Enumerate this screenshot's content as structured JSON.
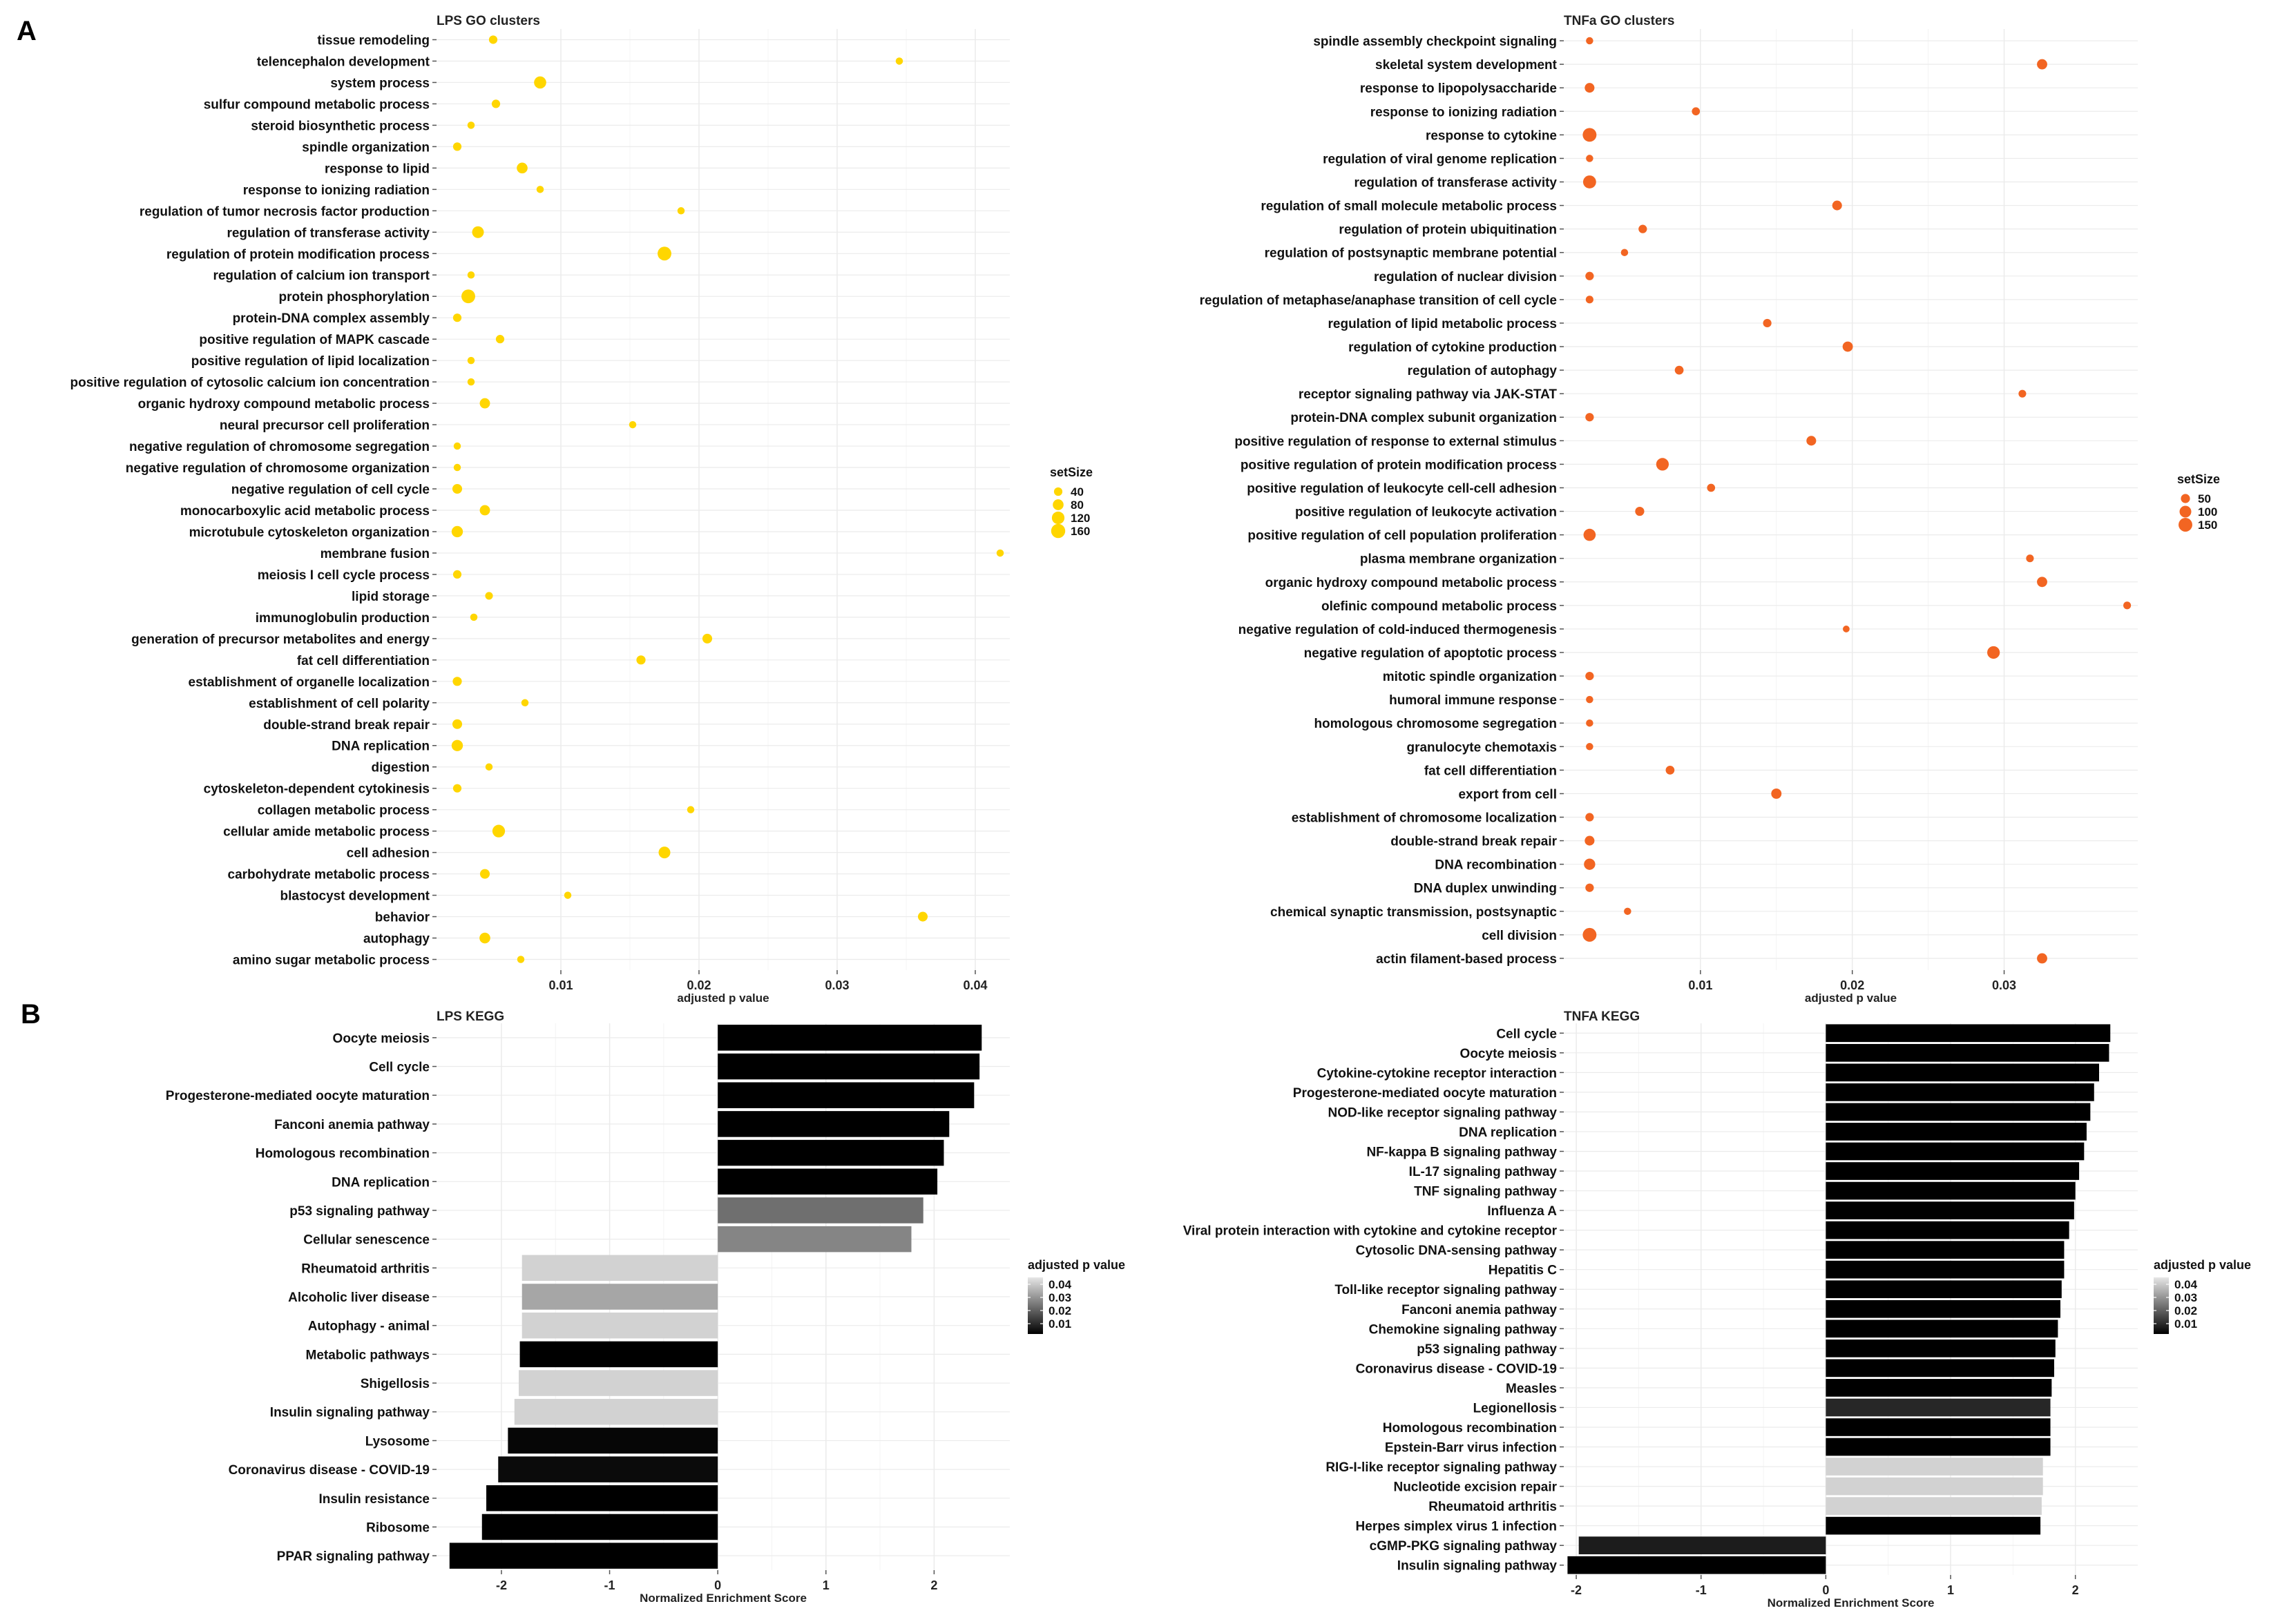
{
  "panel_labels": [
    "A",
    "B"
  ],
  "colors": {
    "lps_dot": "#FFD600",
    "tnfa_dot": "#F26522",
    "grid": "#ebebeb"
  },
  "chart_data": [
    {
      "type": "scatter",
      "title": "LPS GO clusters",
      "xlabel": "adjusted p value",
      "xlim": [
        0.001,
        0.0425
      ],
      "xticks": [
        0.01,
        0.02,
        0.03,
        0.04
      ],
      "x_tick_labels": [
        "0.01",
        "0.02",
        "0.03",
        "0.04"
      ],
      "legend_title": "setSize",
      "legend": [
        {
          "label": "40",
          "size": 40
        },
        {
          "label": "80",
          "size": 80
        },
        {
          "label": "120",
          "size": 120
        },
        {
          "label": "160",
          "size": 160
        }
      ],
      "color": "#FFD600",
      "categories": [
        "tissue remodeling",
        "telencephalon development",
        "system process",
        "sulfur compound metabolic process",
        "steroid biosynthetic process",
        "spindle organization",
        "response to lipid",
        "response to ionizing radiation",
        "regulation of tumor necrosis factor production",
        "regulation of transferase activity",
        "regulation of protein modification process",
        "regulation of calcium ion transport",
        "protein phosphorylation",
        "protein-DNA complex assembly",
        "positive regulation of MAPK cascade",
        "positive regulation of lipid localization",
        "positive regulation of cytosolic calcium ion concentration",
        "organic hydroxy compound metabolic process",
        "neural precursor cell proliferation",
        "negative regulation of chromosome segregation",
        "negative regulation of chromosome organization",
        "negative regulation of cell cycle",
        "monocarboxylic acid metabolic process",
        "microtubule cytoskeleton organization",
        "membrane fusion",
        "meiosis I cell cycle process",
        "lipid storage",
        "immunoglobulin production",
        "generation of precursor metabolites and energy",
        "fat cell differentiation",
        "establishment of organelle localization",
        "establishment of cell polarity",
        "double-strand break repair",
        "DNA replication",
        "digestion",
        "cytoskeleton-dependent cytokinesis",
        "collagen metabolic process",
        "cellular amide metabolic process",
        "cell adhesion",
        "carbohydrate metabolic process",
        "blastocyst development",
        "behavior",
        "autophagy",
        "amino sugar metabolic process"
      ],
      "x": [
        0.0051,
        0.0345,
        0.0085,
        0.0053,
        0.0035,
        0.0025,
        0.0072,
        0.0085,
        0.0187,
        0.004,
        0.0175,
        0.0035,
        0.0033,
        0.0025,
        0.0056,
        0.0035,
        0.0035,
        0.0045,
        0.0152,
        0.0025,
        0.0025,
        0.0025,
        0.0045,
        0.0025,
        0.0418,
        0.0025,
        0.0048,
        0.0037,
        0.0206,
        0.0158,
        0.0025,
        0.0074,
        0.0025,
        0.0025,
        0.0048,
        0.0025,
        0.0194,
        0.0055,
        0.0175,
        0.0045,
        0.0105,
        0.0362,
        0.0045,
        0.0071
      ],
      "setSize": [
        40,
        25,
        110,
        40,
        25,
        40,
        80,
        25,
        25,
        100,
        150,
        25,
        150,
        40,
        40,
        25,
        25,
        70,
        25,
        25,
        25,
        60,
        70,
        90,
        25,
        40,
        30,
        25,
        60,
        50,
        50,
        25,
        60,
        90,
        25,
        40,
        25,
        120,
        100,
        60,
        25,
        60,
        80,
        25
      ]
    },
    {
      "type": "scatter",
      "title": "TNFa GO clusters",
      "xlabel": "adjusted p value",
      "xlim": [
        0.001,
        0.0388
      ],
      "xticks": [
        0.01,
        0.02,
        0.03
      ],
      "x_tick_labels": [
        "0.01",
        "0.02",
        "0.03"
      ],
      "legend_title": "setSize",
      "legend": [
        {
          "label": "50",
          "size": 50
        },
        {
          "label": "100",
          "size": 100
        },
        {
          "label": "150",
          "size": 150
        }
      ],
      "color": "#F26522",
      "categories": [
        "spindle assembly checkpoint signaling",
        "skeletal system development",
        "response to lipopolysaccharide",
        "response to ionizing radiation",
        "response to cytokine",
        "regulation of viral genome replication",
        "regulation of transferase activity",
        "regulation of small molecule metabolic process",
        "regulation of protein ubiquitination",
        "regulation of postsynaptic membrane potential",
        "regulation of nuclear division",
        "regulation of metaphase/anaphase transition of cell cycle",
        "regulation of lipid metabolic process",
        "regulation of cytokine production",
        "regulation of autophagy",
        "receptor signaling pathway via JAK-STAT",
        "protein-DNA complex subunit organization",
        "positive regulation of response to external stimulus",
        "positive regulation of protein modification process",
        "positive regulation of leukocyte cell-cell adhesion",
        "positive regulation of leukocyte activation",
        "positive regulation of cell population proliferation",
        "plasma membrane organization",
        "organic hydroxy compound metabolic process",
        "olefinic compound metabolic process",
        "negative regulation of cold-induced thermogenesis",
        "negative regulation of apoptotic process",
        "mitotic spindle organization",
        "humoral immune response",
        "homologous chromosome segregation",
        "granulocyte chemotaxis",
        "fat cell differentiation",
        "export from cell",
        "establishment of chromosome localization",
        "double-strand break repair",
        "DNA recombination",
        "DNA duplex unwinding",
        "chemical synaptic transmission, postsynaptic",
        "cell division",
        "actin filament-based process"
      ],
      "x": [
        0.0027,
        0.0325,
        0.0027,
        0.0097,
        0.0027,
        0.0027,
        0.0027,
        0.019,
        0.0062,
        0.005,
        0.0027,
        0.0027,
        0.0144,
        0.0197,
        0.0086,
        0.0312,
        0.0027,
        0.0173,
        0.0075,
        0.0107,
        0.006,
        0.0027,
        0.0317,
        0.0325,
        0.0381,
        0.0196,
        0.0293,
        0.0027,
        0.0027,
        0.0027,
        0.0027,
        0.008,
        0.015,
        0.0027,
        0.0027,
        0.0027,
        0.0027,
        0.0052,
        0.0027,
        0.0325
      ],
      "setSize": [
        25,
        70,
        60,
        35,
        150,
        25,
        130,
        60,
        40,
        25,
        40,
        30,
        40,
        70,
        45,
        30,
        40,
        60,
        120,
        35,
        50,
        110,
        30,
        70,
        30,
        20,
        120,
        40,
        25,
        25,
        25,
        45,
        70,
        40,
        60,
        90,
        40,
        25,
        150,
        70
      ]
    },
    {
      "type": "bar",
      "orientation": "horizontal",
      "title": "LPS KEGG",
      "xlabel": "Normalized Enrichment Score",
      "xlim": [
        -2.6,
        2.7
      ],
      "xticks": [
        -2,
        -1,
        0,
        1,
        2
      ],
      "x_tick_labels": [
        "-2",
        "-1",
        "0",
        "1",
        "2"
      ],
      "legend_title": "adjusted p value",
      "legend_labels": [
        "0.04",
        "0.03",
        "0.02",
        "0.01"
      ],
      "color_scale": {
        "low": "#000000",
        "high": "#dddddd",
        "domain": [
          0.005,
          0.045
        ]
      },
      "categories": [
        "Oocyte meiosis",
        "Cell cycle",
        "Progesterone-mediated oocyte maturation",
        "Fanconi anemia pathway",
        "Homologous recombination",
        "DNA replication",
        "p53 signaling pathway",
        "Cellular senescence",
        "Rheumatoid arthritis",
        "Alcoholic liver disease",
        "Autophagy - animal",
        "Metabolic pathways",
        "Shigellosis",
        "Insulin signaling pathway",
        "Lysosome",
        "Coronavirus disease - COVID-19",
        "Insulin resistance",
        "Ribosome",
        "PPAR signaling pathway"
      ],
      "values": [
        2.44,
        2.42,
        2.37,
        2.14,
        2.09,
        2.03,
        1.9,
        1.79,
        -1.81,
        -1.81,
        -1.81,
        -1.83,
        -1.84,
        -1.88,
        -1.94,
        -2.03,
        -2.14,
        -2.18,
        -2.48
      ],
      "p_adjust": [
        0.001,
        0.001,
        0.001,
        0.002,
        0.002,
        0.003,
        0.025,
        0.029,
        0.043,
        0.035,
        0.043,
        0.001,
        0.043,
        0.043,
        0.006,
        0.007,
        0.005,
        0.005,
        0.001
      ]
    },
    {
      "type": "bar",
      "orientation": "horizontal",
      "title": "TNFA KEGG",
      "xlabel": "Normalized Enrichment Score",
      "xlim": [
        -2.1,
        2.5
      ],
      "xticks": [
        -2,
        -1,
        0,
        1,
        2
      ],
      "x_tick_labels": [
        "-2",
        "-1",
        "0",
        "1",
        "2"
      ],
      "legend_title": "adjusted p value",
      "legend_labels": [
        "0.04",
        "0.03",
        "0.02",
        "0.01"
      ],
      "color_scale": {
        "low": "#000000",
        "high": "#dddddd",
        "domain": [
          0.005,
          0.045
        ]
      },
      "categories": [
        "Cell cycle",
        "Oocyte meiosis",
        "Cytokine-cytokine receptor interaction",
        "Progesterone-mediated oocyte maturation",
        "NOD-like receptor signaling pathway",
        "DNA replication",
        "NF-kappa B signaling pathway",
        "IL-17 signaling pathway",
        "TNF signaling pathway",
        "Influenza A",
        "Viral protein interaction with cytokine and cytokine receptor",
        "Cytosolic DNA-sensing pathway",
        "Hepatitis C",
        "Toll-like receptor signaling pathway",
        "Fanconi anemia pathway",
        "Chemokine signaling pathway",
        "p53 signaling pathway",
        "Coronavirus disease - COVID-19",
        "Measles",
        "Legionellosis",
        "Homologous recombination",
        "Epstein-Barr virus infection",
        "RIG-I-like receptor signaling pathway",
        "Nucleotide excision repair",
        "Rheumatoid arthritis",
        "Herpes simplex virus 1 infection",
        "cGMP-PKG signaling pathway",
        "Insulin signaling pathway"
      ],
      "values": [
        2.28,
        2.27,
        2.19,
        2.15,
        2.12,
        2.09,
        2.07,
        2.03,
        2.0,
        1.99,
        1.95,
        1.91,
        1.91,
        1.89,
        1.88,
        1.86,
        1.84,
        1.83,
        1.81,
        1.8,
        1.8,
        1.8,
        1.74,
        1.74,
        1.73,
        1.72,
        -1.98,
        -2.07
      ],
      "p_adjust": [
        0.001,
        0.001,
        0.001,
        0.001,
        0.002,
        0.002,
        0.002,
        0.002,
        0.002,
        0.002,
        0.003,
        0.003,
        0.002,
        0.003,
        0.002,
        0.003,
        0.004,
        0.004,
        0.005,
        0.012,
        0.003,
        0.002,
        0.043,
        0.043,
        0.043,
        0.002,
        0.01,
        0.001
      ]
    }
  ]
}
